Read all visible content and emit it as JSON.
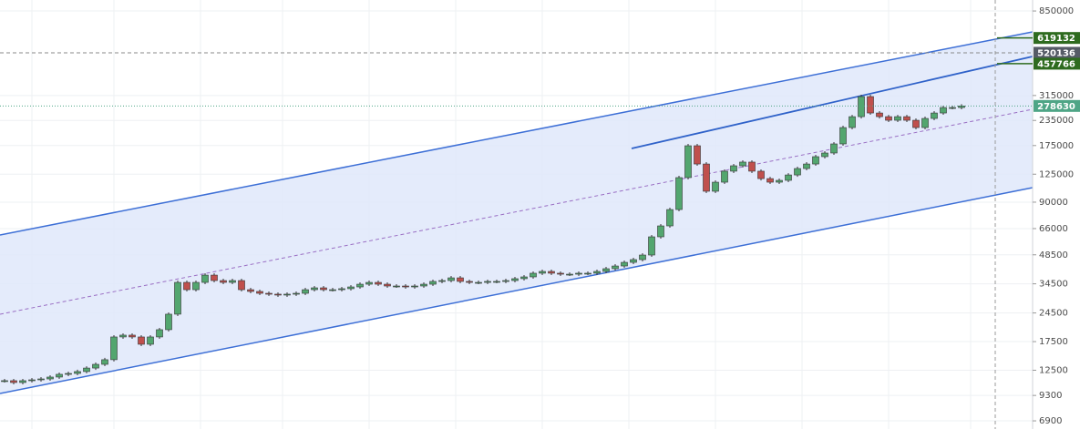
{
  "chart_data": {
    "type": "candlestick",
    "log_scale": true,
    "grid": true,
    "ylim": [
      6270,
      967000
    ],
    "yticks": [
      850000,
      315000,
      235000,
      175000,
      125000,
      90000,
      66000,
      48500,
      34500,
      24500,
      17500,
      12500,
      9300,
      6900
    ],
    "up_color": "#53a66f",
    "down_color": "#c0504d",
    "values": [
      11060,
      10820,
      11060,
      11170,
      11290,
      11540,
      11920,
      12040,
      12310,
      12830,
      13400,
      14150,
      18480,
      18880,
      18480,
      16960,
      18480,
      20130,
      24150,
      35080,
      32200,
      35080,
      38210,
      35840,
      35080,
      35840,
      32200,
      31540,
      30860,
      30550,
      30220,
      30550,
      30860,
      32200,
      32910,
      32200,
      32200,
      32570,
      33260,
      34340,
      35080,
      34340,
      33620,
      33620,
      33260,
      33620,
      34340,
      35480,
      35840,
      37010,
      35480,
      35080,
      35080,
      35480,
      35480,
      35840,
      36640,
      37420,
      39070,
      39900,
      39070,
      38630,
      38630,
      39070,
      39070,
      39900,
      41200,
      42530,
      44390,
      45840,
      48370,
      59910,
      68110,
      82540,
      120100,
      174600,
      140900,
      102300,
      113800,
      129500,
      138000,
      144100,
      129500,
      118700,
      113800,
      116300,
      123900,
      133600,
      140900,
      153600,
      160300,
      178400,
      216200,
      245700,
      311100,
      256500,
      245700,
      235500,
      245700,
      235500,
      216200,
      240600,
      256500,
      273500,
      273500,
      278630
    ],
    "price_labels": [
      {
        "value": 619132,
        "color": "#2e6b1f"
      },
      {
        "value": 520136,
        "color": "#555b66"
      },
      {
        "value": 457766,
        "color": "#2e6b1f"
      },
      {
        "value": 278630,
        "color": "#4fa586"
      }
    ]
  }
}
